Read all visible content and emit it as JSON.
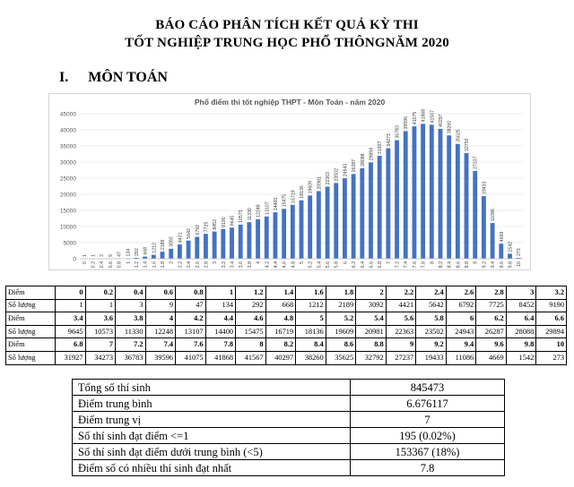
{
  "header": {
    "title_line1": "BÁO CÁO PHÂN TÍCH KẾT QUẢ KỲ THI",
    "title_line2": "TỐT NGHIỆP TRUNG HỌC PHỔ THÔNGNĂM 2020"
  },
  "section": {
    "number": "I.",
    "title": "MÔN TOÁN"
  },
  "chart_data": {
    "type": "bar",
    "title": "Phổ điểm thi tốt nghiệp THPT - Môn Toán - năm 2020",
    "xlabel": "",
    "ylabel": "",
    "ylim": [
      0,
      45000
    ],
    "yticks": [
      "0",
      "5000",
      "10000",
      "15000",
      "20000",
      "25000",
      "30000",
      "35000",
      "40000",
      "45000"
    ],
    "grid": true,
    "legend": "none",
    "bar_color": "#4472c4",
    "categories": [
      "0",
      "0.2",
      "0.4",
      "0.6",
      "0.8",
      "1",
      "1.2",
      "1.4",
      "1.6",
      "1.8",
      "2",
      "2.2",
      "2.4",
      "2.6",
      "2.8",
      "3",
      "3.2",
      "3.4",
      "3.6",
      "3.8",
      "4",
      "4.2",
      "4.4",
      "4.6",
      "4.8",
      "5",
      "5.2",
      "5.4",
      "5.6",
      "5.8",
      "6",
      "6.2",
      "6.4",
      "6.6",
      "6.8",
      "7",
      "7.2",
      "7.4",
      "7.6",
      "7.8",
      "8",
      "8.2",
      "8.4",
      "8.6",
      "8.8",
      "9",
      "9.2",
      "9.4",
      "9.6",
      "9.8",
      "10"
    ],
    "values": [
      1,
      1,
      3,
      9,
      47,
      134,
      292,
      668,
      1212,
      2189,
      3092,
      4421,
      5642,
      6792,
      7725,
      8452,
      9190,
      9645,
      10573,
      11330,
      12248,
      13107,
      14400,
      15475,
      16719,
      18136,
      19609,
      20981,
      22363,
      23502,
      24943,
      26287,
      28088,
      29894,
      31927,
      34273,
      36783,
      39596,
      41075,
      41868,
      41567,
      40297,
      38260,
      35625,
      32792,
      27237,
      19433,
      11086,
      4669,
      1542,
      273
    ]
  },
  "dist_table": {
    "rows": [
      {
        "label": "Điểm",
        "bold": true,
        "cells": [
          "0",
          "0.2",
          "0.4",
          "0.6",
          "0.8",
          "1",
          "1.2",
          "1.4",
          "1.6",
          "1.8",
          "2",
          "2.2",
          "2.4",
          "2.6",
          "2.8",
          "3",
          "3.2"
        ]
      },
      {
        "label": "Số lượng",
        "bold": false,
        "cells": [
          "1",
          "1",
          "3",
          "9",
          "47",
          "134",
          "292",
          "668",
          "1212",
          "2189",
          "3092",
          "4421",
          "5642",
          "6792",
          "7725",
          "8452",
          "9190"
        ]
      },
      {
        "label": "Điểm",
        "bold": true,
        "cells": [
          "3.4",
          "3.6",
          "3.8",
          "4",
          "4.2",
          "4.4",
          "4.6",
          "4.8",
          "5",
          "5.2",
          "5.4",
          "5.6",
          "5.8",
          "6",
          "6.2",
          "6.4",
          "6.6"
        ]
      },
      {
        "label": "Số lượng",
        "bold": false,
        "cells": [
          "9645",
          "10573",
          "11330",
          "12248",
          "13107",
          "14400",
          "15475",
          "16719",
          "18136",
          "19609",
          "20981",
          "22363",
          "23502",
          "24943",
          "26287",
          "28088",
          "29894"
        ]
      },
      {
        "label": "Điểm",
        "bold": true,
        "cells": [
          "6.8",
          "7",
          "7.2",
          "7.4",
          "7.6",
          "7.8",
          "8",
          "8.2",
          "8.4",
          "8.6",
          "8.8",
          "9",
          "9.2",
          "9.4",
          "9.6",
          "9.8",
          "10"
        ]
      },
      {
        "label": "Số lượng",
        "bold": false,
        "cells": [
          "31927",
          "34273",
          "36783",
          "39596",
          "41075",
          "41868",
          "41567",
          "40297",
          "38260",
          "35625",
          "32792",
          "27237",
          "19433",
          "11086",
          "4669",
          "1542",
          "273"
        ]
      }
    ]
  },
  "summary": {
    "rows": [
      {
        "label": "Tổng số thí sinh",
        "value": "845473"
      },
      {
        "label": "Điểm trung bình",
        "value": "6.676117"
      },
      {
        "label": "Điểm trung vị",
        "value": "7"
      },
      {
        "label": "Số thí sinh đạt điểm <=1",
        "value": "195 (0.02%)"
      },
      {
        "label": "Số thí sinh đạt điểm dưới trung bình (<5)",
        "value": "153367 (18%)"
      },
      {
        "label": "Điểm số có nhiều thí sinh đạt nhất",
        "value": "7.8"
      }
    ]
  }
}
